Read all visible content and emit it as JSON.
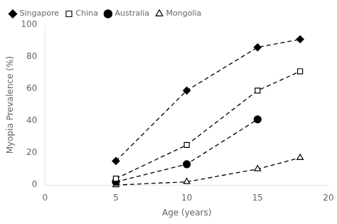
{
  "chart_data": {
    "type": "line",
    "xlabel": "Age (years)",
    "ylabel": "Myopia Prevalence (%)",
    "xlim": [
      0,
      20
    ],
    "ylim": [
      0,
      100
    ],
    "xticks": [
      0,
      5,
      10,
      15,
      20
    ],
    "yticks": [
      0,
      20,
      40,
      60,
      80,
      100
    ],
    "grid": false,
    "legend": "upper left",
    "line_style": "dashed",
    "series": [
      {
        "name": "Singapore",
        "x": [
          5,
          10,
          15,
          18
        ],
        "values": [
          15,
          59,
          86,
          91
        ],
        "color": "black",
        "marker": "diamond_filled"
      },
      {
        "name": "China",
        "x": [
          5,
          10,
          15,
          18
        ],
        "values": [
          4,
          25,
          59,
          71
        ],
        "color": "black",
        "marker": "square_open"
      },
      {
        "name": "Australia",
        "x": [
          5,
          10,
          15
        ],
        "values": [
          2,
          13,
          41
        ],
        "color": "black",
        "marker": "circle_filled"
      },
      {
        "name": "Mongolia",
        "x": [
          5,
          10,
          15,
          18
        ],
        "values": [
          0,
          2,
          10,
          17
        ],
        "color": "black",
        "marker": "triangle_open"
      }
    ]
  }
}
